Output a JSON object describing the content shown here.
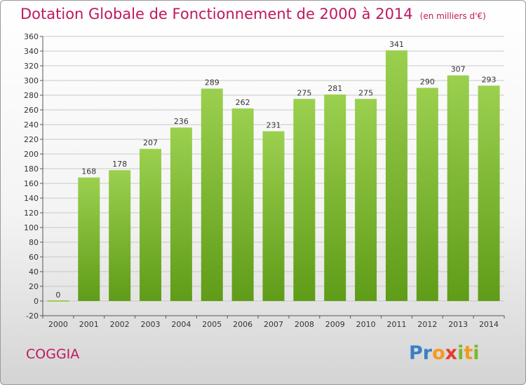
{
  "header": {
    "title": "Dotation Globale de Fonctionnement de 2000 à 2014",
    "unit": "(en milliers d'€)"
  },
  "footer": {
    "commune": "COGGIA",
    "logo": "Proxiti"
  },
  "colors": {
    "title": "#c0175e",
    "bar_top": "#9bd04f",
    "bar_bottom": "#5f9c18",
    "grid": "#c8c8c8"
  },
  "chart_data": {
    "type": "bar",
    "title": "Dotation Globale de Fonctionnement de 2000 à 2014",
    "subtitle": "(en milliers d'€)",
    "xlabel": "",
    "ylabel": "",
    "categories": [
      "2000",
      "2001",
      "2002",
      "2003",
      "2004",
      "2005",
      "2006",
      "2007",
      "2008",
      "2009",
      "2010",
      "2011",
      "2012",
      "2013",
      "2014"
    ],
    "values": [
      0,
      168,
      178,
      207,
      236,
      289,
      262,
      231,
      275,
      281,
      275,
      341,
      290,
      307,
      293
    ],
    "data_labels": [
      "0",
      "168",
      "178",
      "207",
      "236",
      "289",
      "262",
      "231",
      "275",
      "281",
      "275",
      "341",
      "290",
      "307",
      "293"
    ],
    "yticks": [
      "-20",
      "0",
      "20",
      "40",
      "60",
      "80",
      "100",
      "120",
      "140",
      "160",
      "180",
      "200",
      "220",
      "240",
      "260",
      "280",
      "300",
      "320",
      "340",
      "360"
    ],
    "ylim": [
      -20,
      360
    ],
    "grid": true,
    "legend": "none"
  }
}
